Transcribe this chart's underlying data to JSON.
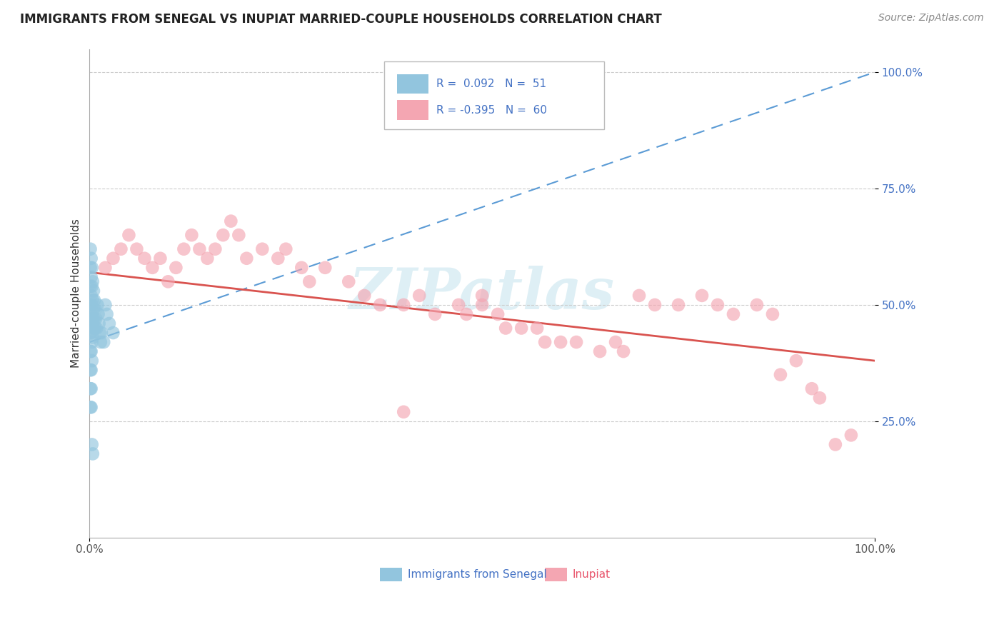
{
  "title": "IMMIGRANTS FROM SENEGAL VS INUPIAT MARRIED-COUPLE HOUSEHOLDS CORRELATION CHART",
  "source": "Source: ZipAtlas.com",
  "ylabel": "Married-couple Households",
  "xlim": [
    0,
    1.0
  ],
  "ylim": [
    0.0,
    1.05
  ],
  "legend_r1": "R =  0.092",
  "legend_n1": "N =  51",
  "legend_r2": "R = -0.395",
  "legend_n2": "N =  60",
  "blue_color": "#92c5de",
  "pink_color": "#f4a6b2",
  "blue_line_color": "#5b9bd5",
  "pink_line_color": "#d9534f",
  "watermark": "ZIPatlas",
  "senegal_x": [
    0.001,
    0.001,
    0.001,
    0.001,
    0.001,
    0.001,
    0.001,
    0.001,
    0.001,
    0.001,
    0.002,
    0.002,
    0.002,
    0.002,
    0.002,
    0.002,
    0.002,
    0.002,
    0.002,
    0.003,
    0.003,
    0.003,
    0.003,
    0.003,
    0.003,
    0.003,
    0.004,
    0.004,
    0.004,
    0.004,
    0.004,
    0.005,
    0.005,
    0.005,
    0.006,
    0.006,
    0.007,
    0.007,
    0.008,
    0.009,
    0.01,
    0.011,
    0.012,
    0.013,
    0.014,
    0.015,
    0.018,
    0.02,
    0.022,
    0.025,
    0.03
  ],
  "senegal_y": [
    0.62,
    0.58,
    0.54,
    0.5,
    0.47,
    0.44,
    0.4,
    0.36,
    0.32,
    0.28,
    0.6,
    0.56,
    0.52,
    0.48,
    0.44,
    0.4,
    0.36,
    0.32,
    0.28,
    0.58,
    0.54,
    0.5,
    0.46,
    0.42,
    0.38,
    0.2,
    0.55,
    0.51,
    0.47,
    0.43,
    0.18,
    0.53,
    0.49,
    0.45,
    0.51,
    0.47,
    0.49,
    0.45,
    0.47,
    0.45,
    0.5,
    0.48,
    0.46,
    0.44,
    0.42,
    0.44,
    0.42,
    0.5,
    0.48,
    0.46,
    0.44
  ],
  "inupiat_x": [
    0.02,
    0.03,
    0.04,
    0.05,
    0.06,
    0.07,
    0.08,
    0.09,
    0.1,
    0.11,
    0.12,
    0.13,
    0.14,
    0.15,
    0.16,
    0.17,
    0.18,
    0.19,
    0.2,
    0.22,
    0.24,
    0.25,
    0.27,
    0.28,
    0.3,
    0.33,
    0.35,
    0.37,
    0.4,
    0.42,
    0.44,
    0.47,
    0.48,
    0.5,
    0.52,
    0.53,
    0.55,
    0.57,
    0.58,
    0.6,
    0.62,
    0.65,
    0.67,
    0.68,
    0.7,
    0.72,
    0.75,
    0.78,
    0.8,
    0.82,
    0.85,
    0.87,
    0.88,
    0.9,
    0.92,
    0.93,
    0.95,
    0.97,
    0.4,
    0.5
  ],
  "inupiat_y": [
    0.58,
    0.6,
    0.62,
    0.65,
    0.62,
    0.6,
    0.58,
    0.6,
    0.55,
    0.58,
    0.62,
    0.65,
    0.62,
    0.6,
    0.62,
    0.65,
    0.68,
    0.65,
    0.6,
    0.62,
    0.6,
    0.62,
    0.58,
    0.55,
    0.58,
    0.55,
    0.52,
    0.5,
    0.5,
    0.52,
    0.48,
    0.5,
    0.48,
    0.5,
    0.48,
    0.45,
    0.45,
    0.45,
    0.42,
    0.42,
    0.42,
    0.4,
    0.42,
    0.4,
    0.52,
    0.5,
    0.5,
    0.52,
    0.5,
    0.48,
    0.5,
    0.48,
    0.35,
    0.38,
    0.32,
    0.3,
    0.2,
    0.22,
    0.27,
    0.52
  ],
  "blue_trend_start_x": 0.0,
  "blue_trend_start_y": 0.42,
  "blue_trend_end_x": 1.0,
  "blue_trend_end_y": 1.0,
  "pink_trend_start_x": 0.0,
  "pink_trend_start_y": 0.57,
  "pink_trend_end_x": 1.0,
  "pink_trend_end_y": 0.38
}
